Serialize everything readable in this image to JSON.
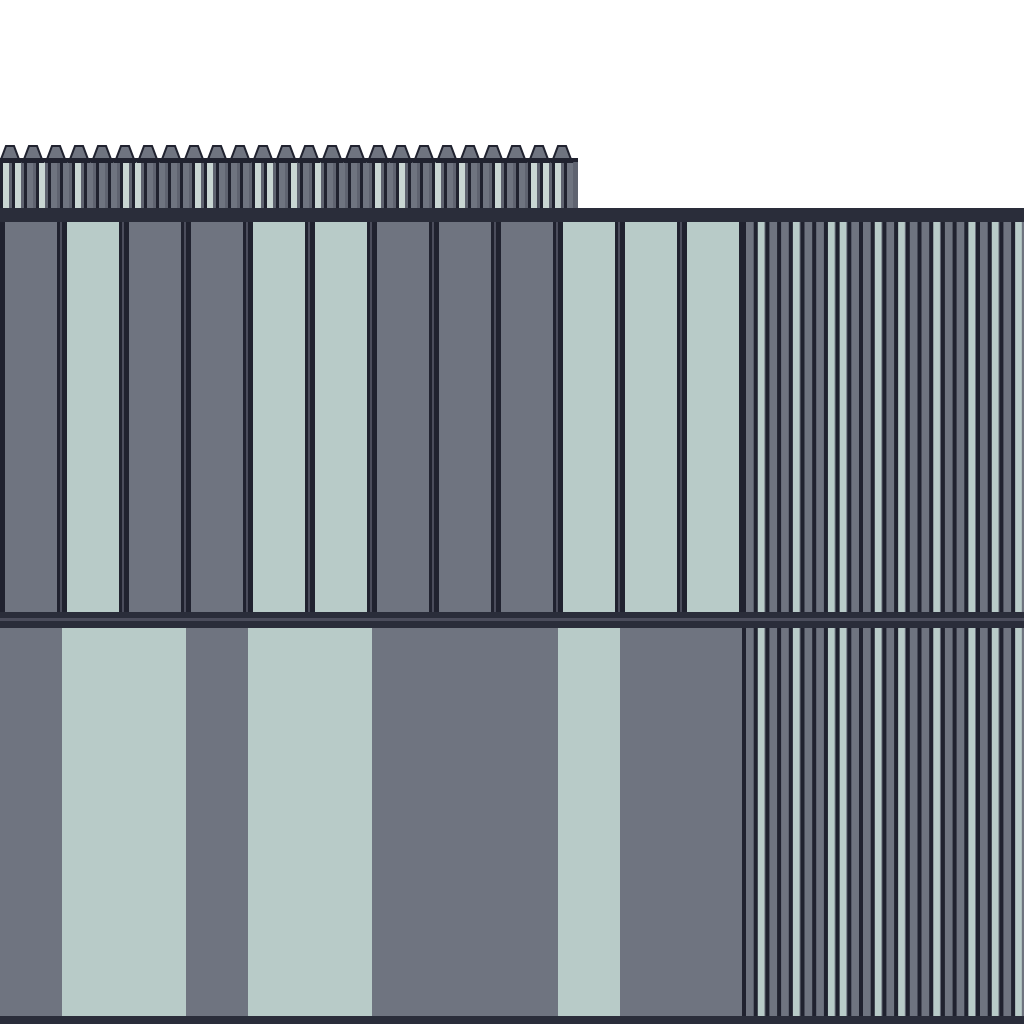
{
  "scene": {
    "subject": "facade-panels",
    "colors": {
      "sky": "#ffffff",
      "mullion": "#20222f",
      "mullion_highlight": "#4b4d5c",
      "panel_dark": "#6f7480",
      "panel_light": "#b8cbc8",
      "rail": "#2a2d3a",
      "top_band_dark": "#5f6370",
      "top_band_light": "#c9d6d3"
    },
    "lower_panel_pattern": [
      "dark",
      "light",
      "light",
      "dark",
      "light",
      "light",
      "dark",
      "dark",
      "dark",
      "light",
      "dark",
      "dark"
    ],
    "upper_panel_pattern": [
      "dark",
      "light",
      "dark",
      "dark",
      "light",
      "light",
      "dark",
      "dark",
      "dark",
      "light",
      "light",
      "light"
    ],
    "fine_fin_pattern": [
      "dark",
      "light",
      "dark",
      "dark",
      "light",
      "dark",
      "dark",
      "light",
      "light",
      "dark",
      "dark",
      "light",
      "dark",
      "light",
      "dark",
      "dark",
      "light",
      "dark",
      "dark",
      "light",
      "dark",
      "light",
      "dark",
      "light"
    ]
  }
}
